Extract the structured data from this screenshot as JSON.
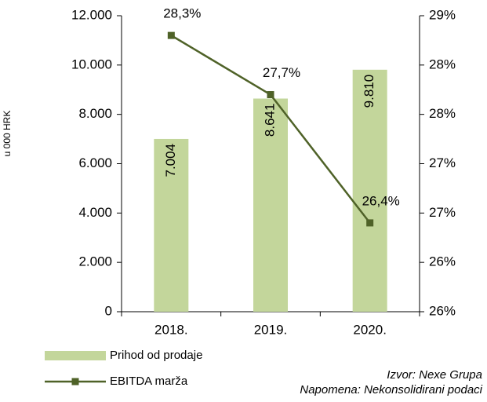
{
  "chart_data": {
    "type": "bar",
    "categories": [
      "2018.",
      "2019.",
      "2020."
    ],
    "ylabel": "u 000 HRK",
    "ylim": [
      0,
      12000
    ],
    "yticks": [
      {
        "value": 0,
        "label": "0"
      },
      {
        "value": 2000,
        "label": "2.000"
      },
      {
        "value": 4000,
        "label": "4.000"
      },
      {
        "value": 6000,
        "label": "6.000"
      },
      {
        "value": 8000,
        "label": "8.000"
      },
      {
        "value": 10000,
        "label": "10.000"
      },
      {
        "value": 12000,
        "label": "12.000"
      }
    ],
    "y2lim": [
      25.5,
      28.5
    ],
    "y2ticks": [
      {
        "value": 25.5,
        "label": "26%"
      },
      {
        "value": 26,
        "label": "26%"
      },
      {
        "value": 26.5,
        "label": "27%"
      },
      {
        "value": 27,
        "label": "27%"
      },
      {
        "value": 27.5,
        "label": "28%"
      },
      {
        "value": 28,
        "label": "28%"
      },
      {
        "value": 28.5,
        "label": "29%"
      }
    ],
    "series": [
      {
        "name": "Prihod od prodaje",
        "type": "bar",
        "color": "#c3d69b",
        "values": [
          7004,
          8641,
          9810
        ],
        "value_labels": [
          "7.004",
          "8.641",
          "9.810"
        ]
      },
      {
        "name": "EBITDA marža",
        "type": "line",
        "axis": "y2",
        "color": "#4f6228",
        "values": [
          28.3,
          27.7,
          26.4
        ],
        "value_labels": [
          "28,3%",
          "27,7%",
          "26,4%"
        ]
      }
    ],
    "annotations": [
      "Izvor: Nexe Grupa",
      "Napomena: Nekonsolidirani podaci"
    ]
  }
}
